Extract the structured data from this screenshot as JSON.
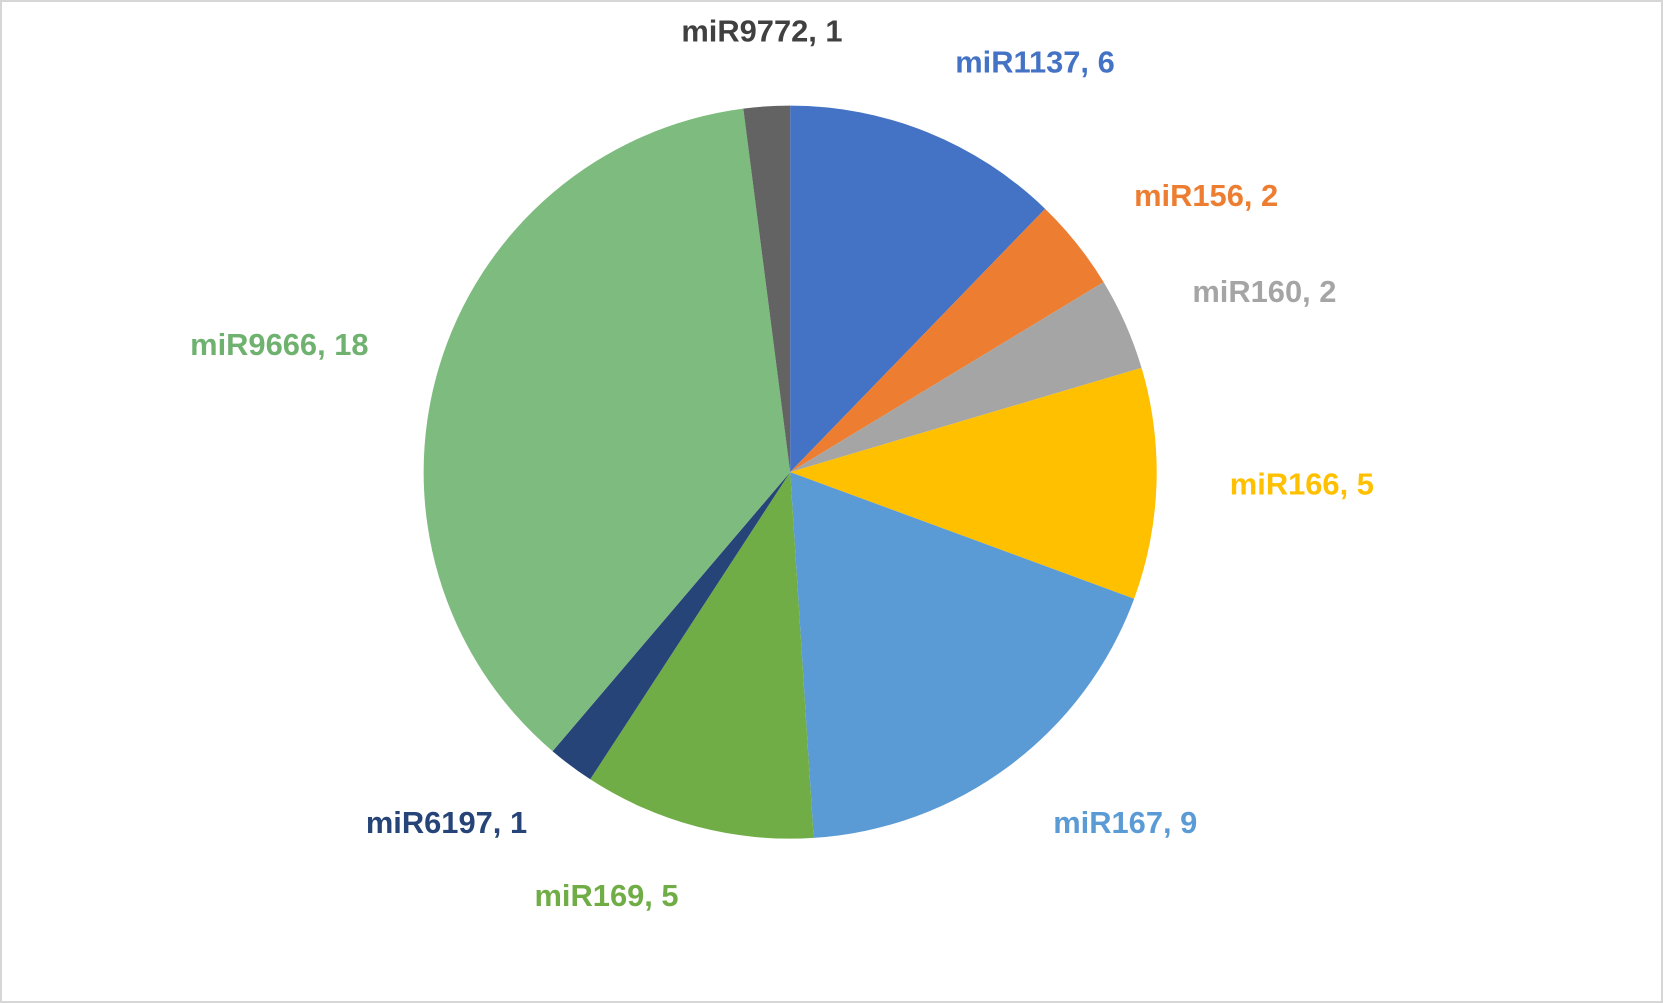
{
  "canvas": {
    "background": "#ffffff",
    "border_color": "#d6d6d6"
  },
  "chart_data": {
    "type": "pie",
    "title": "",
    "legend": "none",
    "direction": "clockwise",
    "start_angle_deg": 0,
    "total": 49,
    "data_label_style": "category name, value (outside end, bold, colored to match slice)",
    "categories": [
      "miR1137",
      "miR156",
      "miR160",
      "miR166",
      "miR167",
      "miR169",
      "miR6197",
      "miR9666",
      "miR9772"
    ],
    "values": [
      6,
      2,
      2,
      5,
      9,
      5,
      1,
      18,
      1
    ],
    "labels": [
      "miR1137, 6",
      "miR156, 2",
      "miR160, 2",
      "miR166, 5",
      "miR167, 9",
      "miR169, 5",
      "miR6197, 1",
      "miR9666, 18",
      "miR9772, 1"
    ],
    "colors": [
      "#4472C4",
      "#ED7D31",
      "#A5A5A5",
      "#FFC000",
      "#5B9BD5",
      "#70AD47",
      "#264478",
      "#7EBB7E",
      "#636363"
    ],
    "label_colors": [
      "#4472C4",
      "#ED7D31",
      "#A5A5A5",
      "#FFC000",
      "#5B9BD5",
      "#70AD47",
      "#264478",
      "#6FB26F",
      "#404040"
    ]
  }
}
